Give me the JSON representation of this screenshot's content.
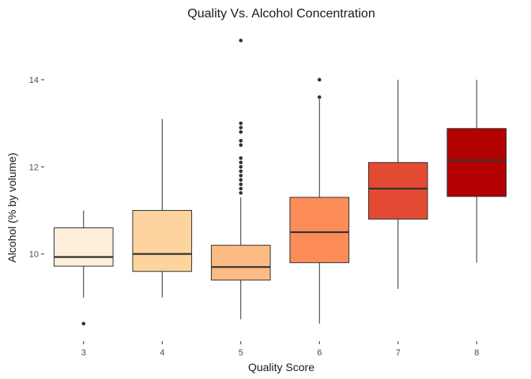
{
  "chart_data": {
    "type": "box",
    "title": "Quality Vs. Alcohol Concentration",
    "xlabel": "Quality Score",
    "ylabel": "Alcohol (% by volume)",
    "ylim": [
      8.0,
      15.25
    ],
    "yticks": [
      10,
      12,
      14
    ],
    "grid": false,
    "legend": "none",
    "categories": [
      "3",
      "4",
      "5",
      "6",
      "7",
      "8"
    ],
    "boxes": [
      {
        "category": "3",
        "min": 9.0,
        "q1": 9.72,
        "median": 9.93,
        "q3": 10.6,
        "max": 11.0,
        "outliers": [
          8.4
        ],
        "color": "#FEEEDA"
      },
      {
        "category": "4",
        "min": 9.0,
        "q1": 9.6,
        "median": 10.0,
        "q3": 11.0,
        "max": 13.1,
        "outliers": [],
        "color": "#FDD49E"
      },
      {
        "category": "5",
        "min": 8.5,
        "q1": 9.4,
        "median": 9.7,
        "q3": 10.2,
        "max": 11.3,
        "outliers": [
          11.4,
          11.5,
          11.6,
          11.7,
          11.8,
          11.9,
          12.0,
          12.1,
          12.2,
          12.5,
          12.6,
          12.8,
          12.9,
          13.0,
          14.9
        ],
        "color": "#FDBB84"
      },
      {
        "category": "6",
        "min": 8.4,
        "q1": 9.8,
        "median": 10.5,
        "q3": 11.3,
        "max": 13.55,
        "outliers": [
          13.6,
          14.0
        ],
        "color": "#FC8D59"
      },
      {
        "category": "7",
        "min": 9.2,
        "q1": 10.8,
        "median": 11.5,
        "q3": 12.1,
        "max": 14.0,
        "outliers": [],
        "color": "#E34A33"
      },
      {
        "category": "8",
        "min": 9.8,
        "q1": 11.32,
        "median": 12.15,
        "q3": 12.88,
        "max": 14.0,
        "outliers": [],
        "color": "#B30000"
      }
    ]
  }
}
